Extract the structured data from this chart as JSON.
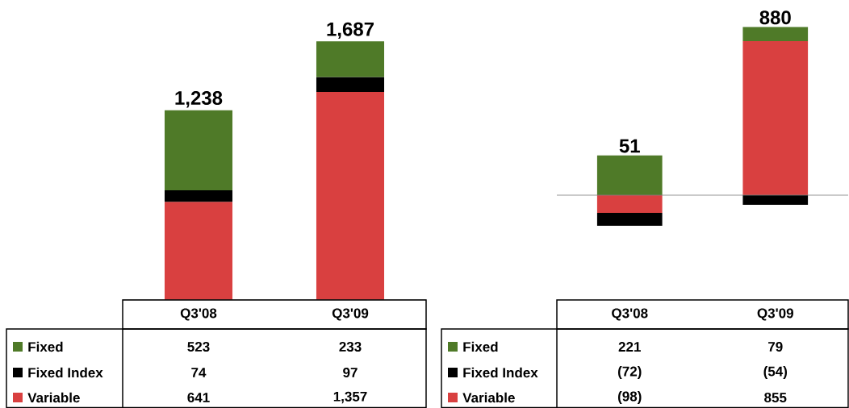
{
  "chart_data": [
    {
      "type": "bar",
      "stacked": true,
      "legend": "bottom",
      "categories": [
        "Q3'08",
        "Q3'09"
      ],
      "series": [
        {
          "name": "Variable",
          "color": "#d94040",
          "values": [
            641,
            1357
          ],
          "value_labels": [
            "641",
            "1,357"
          ]
        },
        {
          "name": "Fixed Index",
          "color": "#000000",
          "values": [
            74,
            97
          ],
          "value_labels": [
            "74",
            "97"
          ]
        },
        {
          "name": "Fixed",
          "color": "#4f7a28",
          "values": [
            523,
            233
          ],
          "value_labels": [
            "523",
            "233"
          ]
        }
      ],
      "totals": [
        "1,238",
        "1,687"
      ]
    },
    {
      "type": "bar",
      "stacked": true,
      "legend": "bottom",
      "categories": [
        "Q3'08",
        "Q3'09"
      ],
      "series": [
        {
          "name": "Variable",
          "color": "#d94040",
          "values": [
            -98,
            855
          ],
          "value_labels": [
            "(98)",
            "855"
          ]
        },
        {
          "name": "Fixed Index",
          "color": "#000000",
          "values": [
            -72,
            -54
          ],
          "value_labels": [
            "(72)",
            "(54)"
          ]
        },
        {
          "name": "Fixed",
          "color": "#4f7a28",
          "values": [
            221,
            79
          ],
          "value_labels": [
            "221",
            "79"
          ]
        }
      ],
      "totals": [
        "51",
        "880"
      ]
    }
  ]
}
